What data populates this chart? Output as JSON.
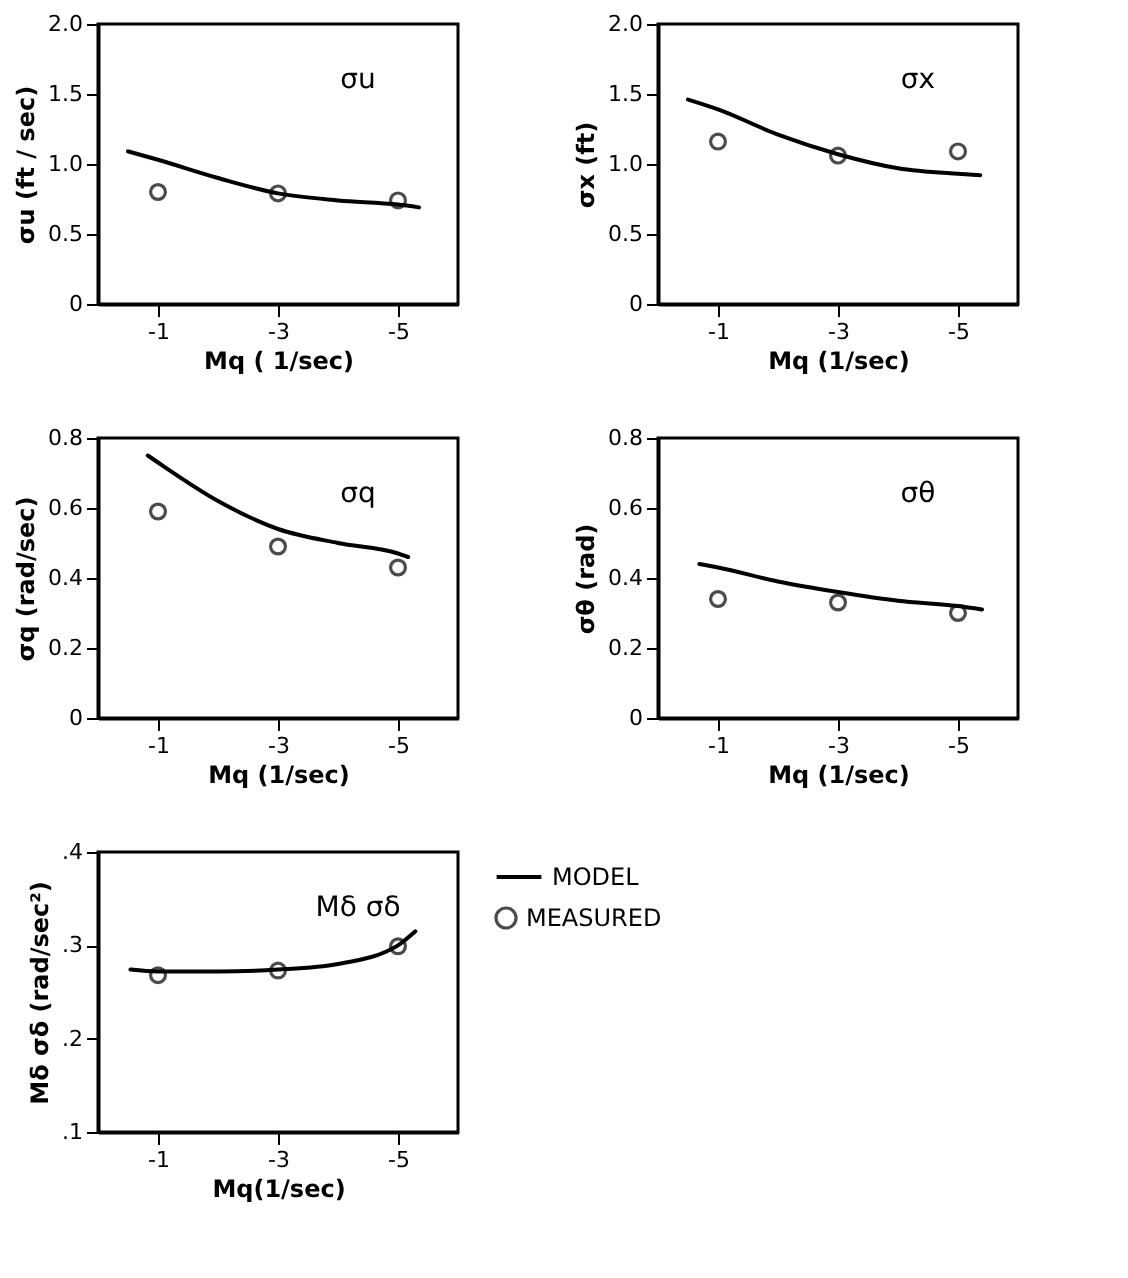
{
  "chart_data": [
    {
      "type": "line",
      "ylabel": "σu (ft / sec)",
      "xlabel": "Mq ( 1/sec)",
      "annotations": [
        "σu"
      ],
      "xlim": [
        0,
        -6
      ],
      "xticks": [
        -1,
        -3,
        -5
      ],
      "ylim": [
        0,
        2
      ],
      "yticks": [
        0,
        {
          "value": 0.5,
          "label": "0.5"
        },
        {
          "value": 1,
          "label": "1.0"
        },
        {
          "value": 1.5,
          "label": "1.5"
        },
        {
          "value": 2,
          "label": "2.0"
        }
      ],
      "grid": false,
      "series": [
        {
          "color": "#000000",
          "line_style": "solid",
          "x": [
            -0.5,
            -1,
            -2,
            -3,
            -4,
            -5,
            -5.35
          ],
          "values": [
            1.09,
            1.03,
            0.9,
            0.79,
            0.74,
            0.71,
            0.69
          ]
        },
        {
          "type": "scatter",
          "color": "#000000",
          "marker": "circle",
          "x": [
            -1,
            -3,
            -5
          ],
          "values": [
            0.8,
            0.79,
            0.74
          ]
        }
      ]
    },
    {
      "type": "line",
      "ylabel": "σx (ft)",
      "xlabel": "Mq (1/sec)",
      "annotations": [
        "σx"
      ],
      "xlim": [
        0,
        -6
      ],
      "xticks": [
        -1,
        -3,
        -5
      ],
      "ylim": [
        0,
        2
      ],
      "yticks": [
        0,
        {
          "value": 0.5,
          "label": "0.5"
        },
        {
          "value": 1,
          "label": "1.0"
        },
        {
          "value": 1.5,
          "label": "1.5"
        },
        {
          "value": 2,
          "label": "2.0"
        }
      ],
      "grid": false,
      "series": [
        {
          "color": "#000000",
          "line_style": "solid",
          "x": [
            -0.5,
            -1,
            -2,
            -3,
            -4,
            -5,
            -5.37
          ],
          "values": [
            1.46,
            1.39,
            1.21,
            1.07,
            0.97,
            0.93,
            0.92
          ]
        },
        {
          "type": "scatter",
          "color": "#000000",
          "marker": "circle",
          "x": [
            -1,
            -3,
            -5
          ],
          "values": [
            1.16,
            1.06,
            1.09
          ]
        }
      ]
    },
    {
      "type": "line",
      "ylabel": "σq (rad/sec)",
      "xlabel": "Mq (1/sec)",
      "annotations": [
        "σq"
      ],
      "xlim": [
        0,
        -6
      ],
      "xticks": [
        -1,
        -3,
        -5
      ],
      "ylim": [
        0,
        0.8
      ],
      "yticks": [
        0,
        0.2,
        0.4,
        0.6,
        0.8
      ],
      "grid": false,
      "series": [
        {
          "color": "#000000",
          "line_style": "solid",
          "x": [
            -0.83,
            -1,
            -2,
            -3,
            -4,
            -5,
            -5.17
          ],
          "values": [
            0.75,
            0.73,
            0.62,
            0.54,
            0.5,
            0.47,
            0.46
          ]
        },
        {
          "type": "scatter",
          "color": "#000000",
          "marker": "circle",
          "x": [
            -1,
            -3,
            -5
          ],
          "values": [
            0.59,
            0.49,
            0.43
          ]
        }
      ]
    },
    {
      "type": "line",
      "ylabel": "σθ (rad)",
      "xlabel": "Mq (1/sec)",
      "annotations": [
        "σθ"
      ],
      "xlim": [
        0,
        -6
      ],
      "xticks": [
        -1,
        -3,
        -5
      ],
      "ylim": [
        0,
        0.8
      ],
      "yticks": [
        0,
        0.2,
        0.4,
        0.6,
        0.8
      ],
      "grid": false,
      "series": [
        {
          "color": "#000000",
          "line_style": "solid",
          "x": [
            -0.69,
            -1,
            -2,
            -3,
            -4,
            -5,
            -5.4
          ],
          "values": [
            0.44,
            0.43,
            0.39,
            0.36,
            0.335,
            0.32,
            0.31
          ]
        },
        {
          "type": "scatter",
          "color": "#000000",
          "marker": "circle",
          "x": [
            -1,
            -3,
            -5
          ],
          "values": [
            0.34,
            0.33,
            0.3
          ]
        }
      ]
    },
    {
      "type": "line",
      "ylabel": "Mδ σδ (rad/sec²)",
      "xlabel": "Mq(1/sec)",
      "annotations": [
        "Mδ σδ"
      ],
      "xlim": [
        0,
        -6
      ],
      "xticks": [
        -1,
        -3,
        -5
      ],
      "ylim": [
        0.1,
        0.4
      ],
      "yticks": [
        {
          "value": 0.1,
          "label": ".1"
        },
        {
          "value": 0.2,
          "label": ".2"
        },
        {
          "value": 0.3,
          "label": ".3"
        },
        {
          "value": 0.4,
          "label": ".4"
        }
      ],
      "grid": false,
      "legend": "right",
      "series": [
        {
          "name": "MODEL",
          "color": "#000000",
          "line_style": "solid",
          "x": [
            -0.54,
            -1,
            -2,
            -3,
            -4,
            -5,
            -5.29
          ],
          "values": [
            0.274,
            0.272,
            0.272,
            0.274,
            0.28,
            0.3,
            0.315
          ]
        },
        {
          "type": "scatter",
          "name": "MEASURED",
          "color": "#000000",
          "marker": "circle",
          "x": [
            -1,
            -3,
            -5
          ],
          "values": [
            0.268,
            0.273,
            0.299
          ]
        }
      ]
    }
  ]
}
